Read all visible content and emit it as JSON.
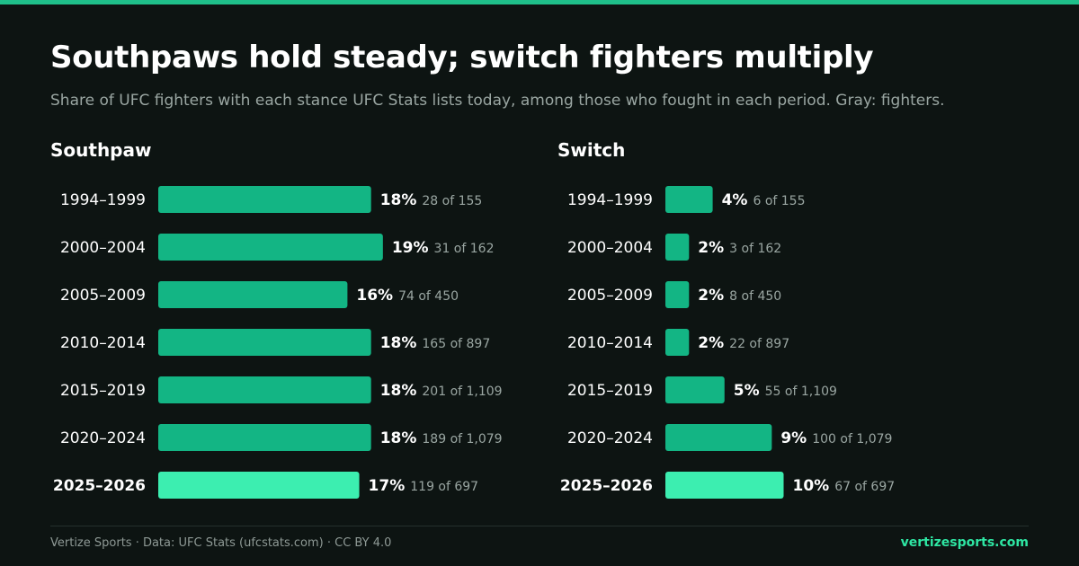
{
  "header": {
    "title": "Southpaws hold steady; switch fighters multiply",
    "subtitle": "Share of UFC fighters with each stance UFC Stats lists today, among those who fought in each period. Gray: fighters."
  },
  "colors": {
    "bar": "#13b584",
    "bar_highlight": "#3ceeb0",
    "accent": "#1fbf8a",
    "muted_text": "#9aa6a2",
    "background": "#0d1412"
  },
  "chart_data": [
    {
      "type": "bar",
      "orientation": "horizontal",
      "title": "Southpaw",
      "categories": [
        "1994–1999",
        "2000–2004",
        "2005–2009",
        "2010–2014",
        "2015–2019",
        "2020–2024",
        "2025–2026"
      ],
      "values": [
        18,
        19,
        16,
        18,
        18,
        18,
        17
      ],
      "value_labels": [
        "18%",
        "19%",
        "16%",
        "18%",
        "18%",
        "18%",
        "17%"
      ],
      "count_labels": [
        "28 of 155",
        "31 of 162",
        "74 of 450",
        "165 of 897",
        "201 of 1,109",
        "189 of 1,079",
        "119 of 697"
      ],
      "highlight_category": "2025–2026",
      "xlim": [
        0,
        20
      ],
      "grid": false
    },
    {
      "type": "bar",
      "orientation": "horizontal",
      "title": "Switch",
      "categories": [
        "1994–1999",
        "2000–2004",
        "2005–2009",
        "2010–2014",
        "2015–2019",
        "2020–2024",
        "2025–2026"
      ],
      "values": [
        4,
        2,
        2,
        2,
        5,
        9,
        10
      ],
      "value_labels": [
        "4%",
        "2%",
        "2%",
        "2%",
        "5%",
        "9%",
        "10%"
      ],
      "count_labels": [
        "6 of 155",
        "3 of 162",
        "8 of 450",
        "22 of 897",
        "55 of 1,109",
        "100 of 1,079",
        "67 of 697"
      ],
      "highlight_category": "2025–2026",
      "xlim": [
        0,
        20
      ],
      "grid": false
    }
  ],
  "footer": {
    "credit": "Vertize Sports · Data: UFC Stats (ufcstats.com) · CC BY 4.0",
    "site": "vertizesports.com"
  }
}
